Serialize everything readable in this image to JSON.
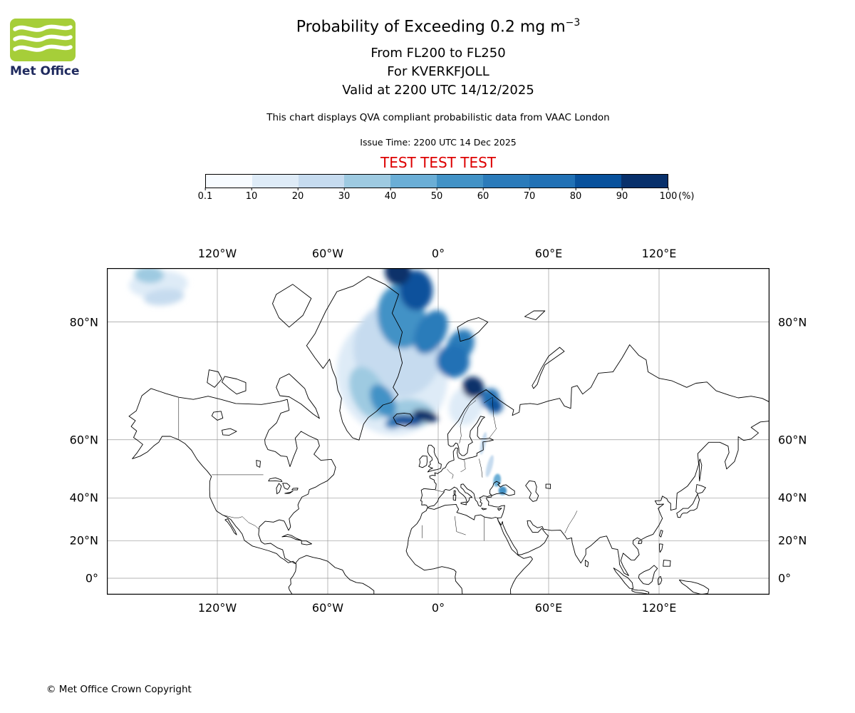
{
  "header": {
    "logo_text": "Met Office",
    "title_text": "Probability of Exceeding 0.2 mg m",
    "title_exponent": "−3",
    "subtitle_fl": "From FL200 to FL250",
    "subtitle_volcano": "For KVERKFJOLL",
    "subtitle_valid": "Valid at 2200 UTC 14/12/2025",
    "description": "This chart displays QVA compliant probabilistic data from VAAC London",
    "issue_time": "Issue Time: 2200 UTC 14 Dec 2025",
    "test_banner": "TEST TEST TEST"
  },
  "colorbar": {
    "tick_labels": [
      "0.1",
      "10",
      "20",
      "30",
      "40",
      "50",
      "60",
      "70",
      "80",
      "90",
      "100"
    ],
    "unit": "(%)",
    "colors": [
      "#f7fbff",
      "#deebf7",
      "#c6dbef",
      "#9ecae1",
      "#6baed6",
      "#4292c6",
      "#2b7bba",
      "#2171b5",
      "#08519c",
      "#08306b"
    ]
  },
  "map": {
    "x_tick_labels": [
      "120°W",
      "60°W",
      "0°",
      "60°E",
      "120°E"
    ],
    "x_tick_lons": [
      -120,
      -60,
      0,
      60,
      120
    ],
    "y_tick_labels": [
      "80°N",
      "60°N",
      "40°N",
      "20°N",
      "0°"
    ],
    "y_tick_lats": [
      80,
      60,
      40,
      20,
      0
    ]
  },
  "footer": {
    "copyright": "© Met Office Crown Copyright"
  },
  "colors": {
    "test_red": "#dd0000",
    "logo_green": "#a6ce39",
    "logo_text_navy": "#1f2a5e",
    "coastline": "#000000",
    "border_line": "#000000",
    "gridline": "#9a9a9a"
  },
  "chart_data": {
    "type": "heatmap",
    "title": "Probability of Exceeding 0.2 mg m−3",
    "layer": "FL200 to FL250",
    "source_volcano": "KVERKFJOLL",
    "valid_time": "2200 UTC 14/12/2025",
    "issue_time": "2200 UTC 14 Dec 2025",
    "units": "%",
    "legend_label": "(%)",
    "probability_scale": [
      0.1,
      10,
      20,
      30,
      40,
      50,
      60,
      70,
      80,
      90,
      100
    ],
    "projection": "mercator",
    "lon_range": [
      -180,
      180
    ],
    "lat_range": [
      -8.9,
      84
    ],
    "gridlines": true,
    "gridline_lons": [
      -120,
      -60,
      0,
      60,
      120
    ],
    "gridline_lats": [
      0,
      20,
      40,
      60,
      80
    ],
    "plumes": [
      {
        "lon": -152,
        "lat": 83.0,
        "rx_deg": 16,
        "ry_deg": 0.9,
        "rot": -3,
        "probability": 12
      },
      {
        "lon": -149,
        "lat": 82.1,
        "rx_deg": 11,
        "ry_deg": 0.6,
        "rot": -6,
        "probability": 25
      },
      {
        "lon": -157,
        "lat": 83.6,
        "rx_deg": 8,
        "ry_deg": 0.5,
        "rot": 2,
        "probability": 35
      },
      {
        "lon": -25,
        "lat": 73.5,
        "rx_deg": 30,
        "ry_deg": 8.5,
        "rot": -15,
        "probability": 12
      },
      {
        "lon": -22,
        "lat": 77.0,
        "rx_deg": 24,
        "ry_deg": 5.5,
        "rot": -12,
        "probability": 25
      },
      {
        "lon": 15,
        "lat": 68.0,
        "rx_deg": 9,
        "ry_deg": 4.0,
        "rot": 20,
        "probability": 12
      },
      {
        "lon": -38,
        "lat": 70.5,
        "rx_deg": 9,
        "ry_deg": 5.0,
        "rot": -25,
        "probability": 35
      },
      {
        "lon": -30,
        "lat": 69.0,
        "rx_deg": 6,
        "ry_deg": 3.5,
        "rot": -30,
        "probability": 55
      },
      {
        "lon": -20,
        "lat": 80.5,
        "rx_deg": 13,
        "ry_deg": 2.8,
        "rot": -8,
        "probability": 55
      },
      {
        "lon": -12,
        "lat": 82.6,
        "rx_deg": 9,
        "ry_deg": 1.4,
        "rot": -3,
        "probability": 85
      },
      {
        "lon": -22,
        "lat": 83.8,
        "rx_deg": 7,
        "ry_deg": 0.8,
        "rot": -10,
        "probability": 92
      },
      {
        "lon": -4,
        "lat": 79.0,
        "rx_deg": 8,
        "ry_deg": 2.4,
        "rot": 28,
        "probability": 65
      },
      {
        "lon": 12,
        "lat": 77.5,
        "rx_deg": 7,
        "ry_deg": 2.0,
        "rot": 30,
        "probability": 65
      },
      {
        "lon": 8,
        "lat": 75.5,
        "rx_deg": 9,
        "ry_deg": 2.2,
        "rot": 33,
        "probability": 75
      },
      {
        "lon": 19,
        "lat": 71.5,
        "rx_deg": 6,
        "ry_deg": 1.8,
        "rot": 40,
        "probability": 92
      },
      {
        "lon": 28,
        "lat": 69.5,
        "rx_deg": 5,
        "ry_deg": 2.0,
        "rot": 35,
        "probability": 75
      },
      {
        "lon": 31,
        "lat": 68.0,
        "rx_deg": 4,
        "ry_deg": 1.5,
        "rot": 40,
        "probability": 80
      },
      {
        "lon": -15,
        "lat": 66.5,
        "rx_deg": 13,
        "ry_deg": 3.0,
        "rot": 4,
        "probability": 35
      },
      {
        "lon": -24,
        "lat": 64.3,
        "rx_deg": 5,
        "ry_deg": 1.3,
        "rot": -12,
        "probability": 60
      },
      {
        "lon": -17,
        "lat": 64.8,
        "rx_deg": 8,
        "ry_deg": 1.3,
        "rot": 6,
        "probability": 82
      },
      {
        "lon": -7,
        "lat": 65.9,
        "rx_deg": 7,
        "ry_deg": 1.3,
        "rot": 14,
        "probability": 92
      },
      {
        "lon": 24.5,
        "lat": 59.0,
        "rx_deg": 1.3,
        "ry_deg": 3.2,
        "rot": 12,
        "probability": 25
      },
      {
        "lon": 28,
        "lat": 52.0,
        "rx_deg": 1.5,
        "ry_deg": 3.8,
        "rot": 15,
        "probability": 25
      },
      {
        "lon": 32,
        "lat": 47.0,
        "rx_deg": 2.0,
        "ry_deg": 2.4,
        "rot": 8,
        "probability": 42
      },
      {
        "lon": 35,
        "lat": 43.0,
        "rx_deg": 2.2,
        "ry_deg": 1.7,
        "rot": 0,
        "probability": 55
      }
    ]
  }
}
